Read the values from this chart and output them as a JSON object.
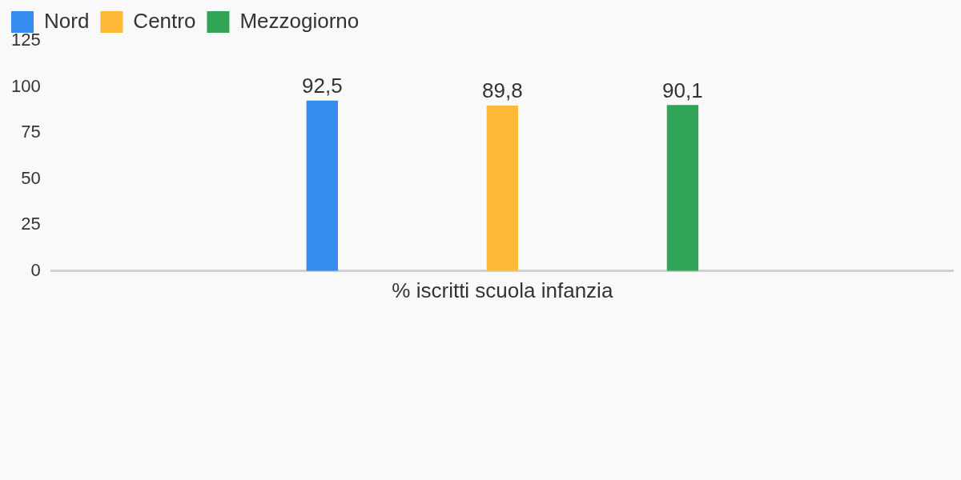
{
  "chart_data": {
    "type": "bar",
    "categories": [
      "% iscritti scuola infanzia"
    ],
    "series": [
      {
        "name": "Nord",
        "color": "#348cf0",
        "values": [
          92.5
        ],
        "value_labels": [
          "92,5"
        ]
      },
      {
        "name": "Centro",
        "color": "#ffb938",
        "values": [
          89.8
        ],
        "value_labels": [
          "89,8"
        ]
      },
      {
        "name": "Mezzogiorno",
        "color": "#31a457",
        "values": [
          90.1
        ],
        "value_labels": [
          "90,1"
        ]
      }
    ],
    "ylim": [
      0,
      125
    ],
    "yticks": [
      0,
      25,
      50,
      75,
      100,
      125
    ],
    "grid": false,
    "legend": "top left"
  }
}
